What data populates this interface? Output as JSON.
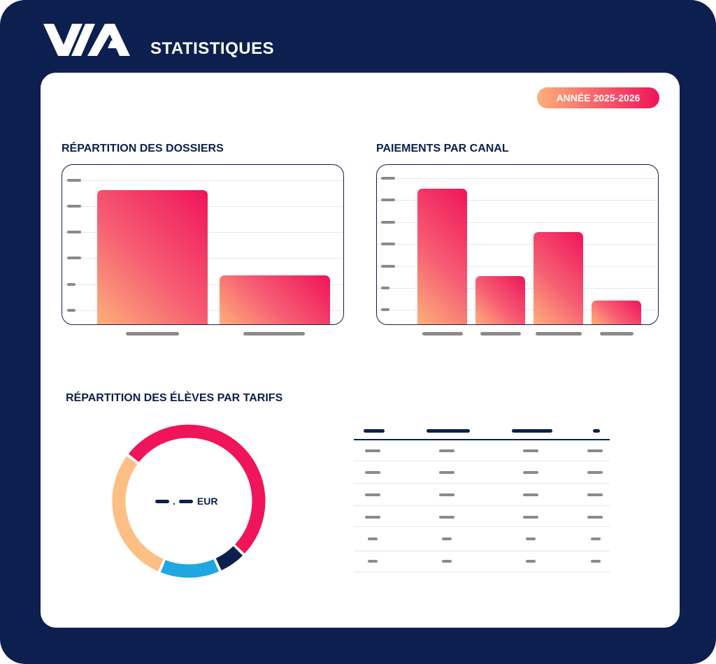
{
  "header": {
    "logo_text": "VIA",
    "title": "STATISTIQUES"
  },
  "badge": {
    "label": "ANNÉE 2025-2026"
  },
  "colors": {
    "navy": "#0c1f4f",
    "pink": "#f0145a",
    "orange": "#fdb07a",
    "blue": "#1ea7e1",
    "gray": "#8a8a8a"
  },
  "sections": {
    "dossiers": "RÉPARTITION DES DOSSIERS",
    "paiements": "PAIEMENTS PAR CANAL",
    "eleves": "RÉPARTITION DES ÉLÈVES PAR TARIFS"
  },
  "chart_data": [
    {
      "type": "bar",
      "title": "RÉPARTITION DES DOSSIERS",
      "values": [
        5.2,
        1.9
      ],
      "ylim": [
        0,
        6.2
      ],
      "grid": true,
      "gradient": [
        "#fdb07a",
        "#f0145a"
      ]
    },
    {
      "type": "bar",
      "title": "PAIEMENTS PAR CANAL",
      "values": [
        6.2,
        2.2,
        4.2,
        1.1
      ],
      "ylim": [
        0,
        7.3
      ],
      "grid": true,
      "gradient": [
        "#fdb07a",
        "#f0145a"
      ]
    },
    {
      "type": "pie",
      "donut": true,
      "title": "RÉPARTITION DES ÉLÈVES PAR TARIFS",
      "center_label": "EUR",
      "slices": [
        {
          "value": 52,
          "color": "#f0145a"
        },
        {
          "value": 6,
          "color": "#0c1f4f"
        },
        {
          "value": 13,
          "color": "#1ea7e1"
        },
        {
          "value": 29,
          "color": "#fdbf84"
        }
      ]
    }
  ],
  "donut": {
    "currency": "EUR",
    "decimal_sep": "."
  }
}
